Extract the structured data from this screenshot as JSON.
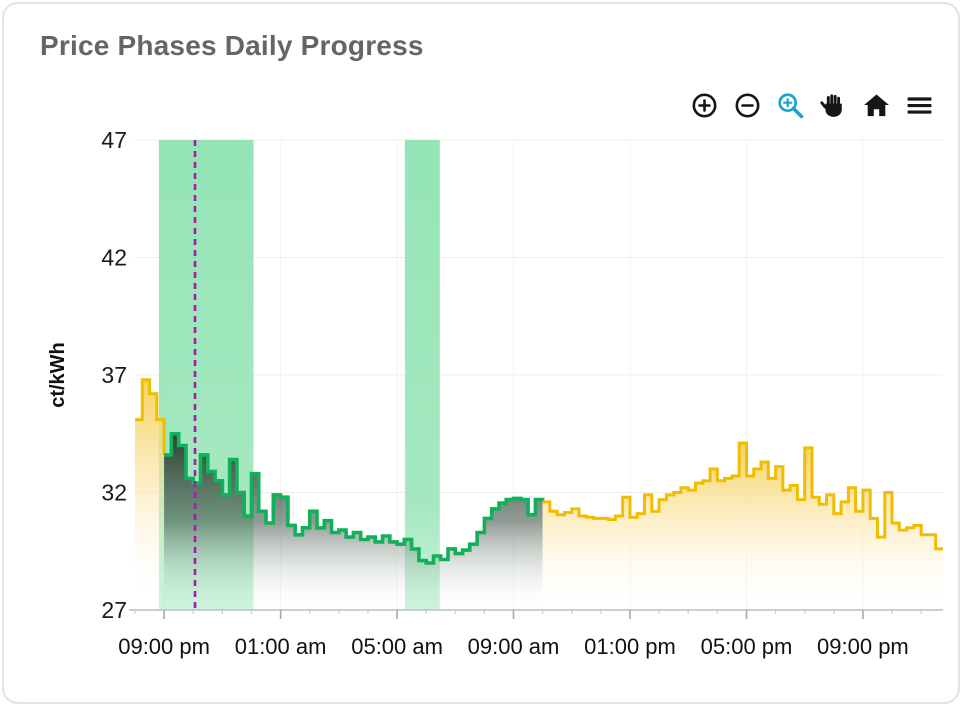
{
  "card": {
    "title": "Price Phases Daily Progress"
  },
  "toolbar": {
    "icon_color": "#151515",
    "active_color": "#17a2d4",
    "buttons": [
      {
        "id": "zoom-in",
        "label": "Zoom in"
      },
      {
        "id": "zoom-out",
        "label": "Zoom out"
      },
      {
        "id": "box-zoom",
        "label": "Box Zoom (active)"
      },
      {
        "id": "pan",
        "label": "Pan"
      },
      {
        "id": "reset",
        "label": "Reset"
      },
      {
        "id": "menu",
        "label": "Menu"
      }
    ]
  },
  "chart_data": {
    "type": "step-area",
    "title": "Price Phases Daily Progress",
    "ylabel": "ct/kWh",
    "ylim": [
      27,
      47
    ],
    "y_ticks": [
      {
        "v": 47,
        "label": "47"
      },
      {
        "v": 42,
        "label": "42"
      },
      {
        "v": 37,
        "label": "37"
      },
      {
        "v": 32,
        "label": "32"
      },
      {
        "v": 27,
        "label": "27"
      }
    ],
    "x_ticks": [
      {
        "hour": 1,
        "label": "09:00 pm"
      },
      {
        "hour": 5,
        "label": "01:00 am"
      },
      {
        "hour": 9,
        "label": "05:00 am"
      },
      {
        "hour": 13,
        "label": "09:00 am"
      },
      {
        "hour": 17,
        "label": "01:00 pm"
      },
      {
        "hour": 21,
        "label": "05:00 pm"
      },
      {
        "hour": 25,
        "label": "09:00 pm"
      }
    ],
    "hours_domain": [
      0,
      27.75
    ],
    "minor_tick_hours": 1,
    "step_minutes": 15,
    "unit": "ct/kWh",
    "values": [
      35.1,
      36.8,
      36.2,
      35.1,
      33.6,
      34.5,
      34.0,
      32.6,
      32.4,
      33.6,
      32.9,
      32.5,
      31.9,
      33.4,
      32.0,
      31.0,
      32.8,
      31.2,
      30.7,
      31.9,
      31.8,
      30.6,
      30.2,
      30.5,
      31.2,
      30.5,
      30.8,
      30.3,
      30.4,
      30.1,
      30.3,
      30.0,
      30.1,
      29.9,
      30.15,
      29.9,
      29.8,
      30.0,
      29.6,
      29.1,
      29.0,
      29.3,
      29.15,
      29.6,
      29.4,
      29.55,
      29.8,
      30.3,
      30.9,
      31.3,
      31.55,
      31.7,
      31.75,
      31.7,
      31.05,
      31.7,
      31.6,
      31.2,
      31.05,
      31.15,
      31.3,
      31.0,
      30.95,
      30.9,
      30.9,
      30.85,
      31.0,
      31.8,
      30.95,
      31.1,
      31.9,
      31.2,
      31.7,
      31.9,
      32.0,
      32.2,
      32.1,
      32.4,
      32.5,
      33.0,
      32.5,
      32.6,
      32.7,
      34.1,
      32.7,
      33.0,
      33.3,
      32.6,
      33.1,
      32.1,
      32.3,
      31.7,
      33.9,
      31.8,
      31.5,
      31.9,
      31.1,
      31.6,
      32.2,
      31.2,
      32.1,
      30.9,
      30.1,
      32.0,
      30.7,
      30.4,
      30.5,
      30.6,
      30.2,
      30.2,
      29.6
    ],
    "phases": [
      {
        "name": "standard-price-evening",
        "line_color": "#F1BD00",
        "fill": "yellow",
        "from_index": 0,
        "to_index": 4
      },
      {
        "name": "green-phase-night",
        "line_color": "#10B159",
        "fill": "dark",
        "from_index": 4,
        "to_index": 56
      },
      {
        "name": "standard-price-day",
        "line_color": "#F1BD00",
        "fill": "yellow",
        "from_index": 56,
        "to_index": 111
      }
    ],
    "bands": [
      {
        "from_hour": 0.82,
        "to_hour": 4.07
      },
      {
        "from_hour": 9.27,
        "to_hour": 10.47
      }
    ],
    "band_color": "#8FE3B1",
    "now_line": {
      "hour": 2.06,
      "color": "#A21CAF",
      "style": "dashed"
    },
    "legend": "none",
    "grid": "faint"
  }
}
